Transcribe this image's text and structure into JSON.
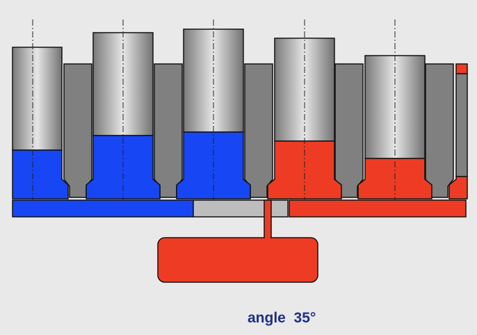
{
  "caption": "angle  35°",
  "colors": {
    "background": "#e9e9e9",
    "pin_gray": "#808080",
    "rotor_gradient_dark": "#777777",
    "rotor_gradient_light": "#e6e6e6",
    "blue_section": "#1746f4",
    "red_section": "#ee3c24",
    "neutral_bar": "#bdbdbd",
    "outline": "#111111",
    "caption_text": "#1f2f86"
  }
}
